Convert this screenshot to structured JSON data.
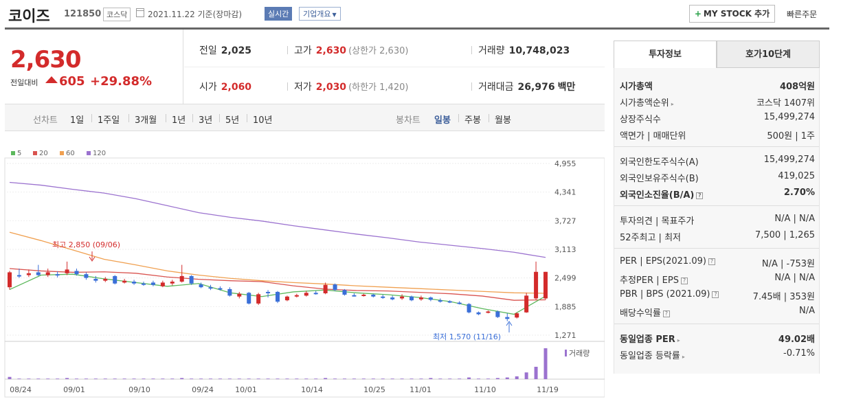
{
  "header": {
    "name": "코이즈",
    "code": "121850",
    "market": "코스닥",
    "date": "2021.11.22 기준(장마감)",
    "realtime": "실시간",
    "company": "기업개요",
    "mystock": "MY STOCK 추가",
    "quick_order": "빠른주문"
  },
  "price": {
    "current": "2,630",
    "change_label": "전일대비",
    "change": "605",
    "change_pct": "+29.88%"
  },
  "stats": {
    "prev_label": "전일",
    "prev": "2,025",
    "high_label": "고가",
    "high": "2,630",
    "upper_limit": "(상한가 2,630)",
    "volume_label": "거래량",
    "volume": "10,748,023",
    "open_label": "시가",
    "open": "2,060",
    "low_label": "저가",
    "low": "2,030",
    "lower_limit": "(하한가 1,420)",
    "amount_label": "거래대금",
    "amount": "26,976",
    "amount_unit": "백만"
  },
  "chart_tabs": {
    "line": "선차트",
    "periods": [
      "1일",
      "1주일",
      "3개월",
      "1년",
      "3년",
      "5년",
      "10년"
    ],
    "candle": "봉차트",
    "candle_periods": [
      "일봉",
      "주봉",
      "월봉"
    ]
  },
  "legend": [
    "5",
    "20",
    "60",
    "120"
  ],
  "colors": {
    "ma5": "#5cb85c",
    "ma20": "#d9534f",
    "ma60": "#f0a050",
    "ma120": "#9b72cf",
    "up": "#d32b2b",
    "down": "#3a6fd8",
    "volume": "#9b72cf"
  },
  "chart_data": {
    "type": "candlestick",
    "ylim": [
      1271,
      4955
    ],
    "y_ticks": [
      "4,955",
      "4,341",
      "3,727",
      "3,113",
      "2,499",
      "1,885",
      "1,271"
    ],
    "x_ticks": [
      "08/24",
      "09/01",
      "09/10",
      "09/24",
      "10/01",
      "10/14",
      "10/25",
      "11/01",
      "11/10",
      "11/19"
    ],
    "high_annotation": "최고 2,850 (09/06)",
    "low_annotation": "최저 1,570 (11/16)",
    "volume_label": "거래량",
    "ma120": [
      4550,
      4490,
      4400,
      4320,
      4200,
      4050,
      3900,
      3800,
      3720,
      3620,
      3530,
      3440,
      3360,
      3270,
      3200,
      3130,
      3050,
      2940
    ],
    "ma60": [
      3480,
      3300,
      3100,
      2900,
      2780,
      2650,
      2560,
      2490,
      2440,
      2400,
      2370,
      2330,
      2300,
      2270,
      2240,
      2210,
      2180,
      2170
    ],
    "ma20": [
      2700,
      2650,
      2620,
      2630,
      2600,
      2520,
      2470,
      2440,
      2420,
      2330,
      2260,
      2230,
      2220,
      2190,
      2160,
      2110,
      2020,
      2030
    ],
    "ma5": [
      2250,
      2560,
      2580,
      2480,
      2400,
      2320,
      2380,
      2180,
      2100,
      2200,
      2240,
      2180,
      2140,
      2080,
      1990,
      1840,
      1720,
      2110
    ],
    "candles": [
      {
        "o": 2300,
        "c": 2620,
        "h": 2650,
        "l": 2250
      },
      {
        "o": 2560,
        "c": 2540,
        "h": 2700,
        "l": 2500
      },
      {
        "o": 2560,
        "c": 2600,
        "h": 2680,
        "l": 2520
      },
      {
        "o": 2620,
        "c": 2560,
        "h": 2780,
        "l": 2540
      },
      {
        "o": 2560,
        "c": 2620,
        "h": 2700,
        "l": 2520
      },
      {
        "o": 2580,
        "c": 2560,
        "h": 2640,
        "l": 2510
      },
      {
        "o": 2600,
        "c": 2680,
        "h": 2850,
        "l": 2560
      },
      {
        "o": 2650,
        "c": 2580,
        "h": 2700,
        "l": 2550
      },
      {
        "o": 2580,
        "c": 2500,
        "h": 2620,
        "l": 2460
      },
      {
        "o": 2480,
        "c": 2440,
        "h": 2540,
        "l": 2400
      },
      {
        "o": 2440,
        "c": 2480,
        "h": 2520,
        "l": 2410
      },
      {
        "o": 2540,
        "c": 2380,
        "h": 2560,
        "l": 2360
      },
      {
        "o": 2400,
        "c": 2440,
        "h": 2480,
        "l": 2380
      },
      {
        "o": 2420,
        "c": 2380,
        "h": 2460,
        "l": 2350
      },
      {
        "o": 2380,
        "c": 2360,
        "h": 2420,
        "l": 2330
      },
      {
        "o": 2400,
        "c": 2350,
        "h": 2440,
        "l": 2320
      },
      {
        "o": 2320,
        "c": 2400,
        "h": 2440,
        "l": 2300
      },
      {
        "o": 2380,
        "c": 2420,
        "h": 2460,
        "l": 2340
      },
      {
        "o": 2420,
        "c": 2540,
        "h": 2780,
        "l": 2400
      },
      {
        "o": 2540,
        "c": 2380,
        "h": 2560,
        "l": 2350
      },
      {
        "o": 2360,
        "c": 2300,
        "h": 2400,
        "l": 2280
      },
      {
        "o": 2300,
        "c": 2280,
        "h": 2350,
        "l": 2240
      },
      {
        "o": 2280,
        "c": 2260,
        "h": 2320,
        "l": 2230
      },
      {
        "o": 2260,
        "c": 2120,
        "h": 2300,
        "l": 2100
      },
      {
        "o": 2100,
        "c": 2160,
        "h": 2200,
        "l": 2060
      },
      {
        "o": 2180,
        "c": 1950,
        "h": 2200,
        "l": 1930
      },
      {
        "o": 1950,
        "c": 2150,
        "h": 2180,
        "l": 1920
      },
      {
        "o": 2200,
        "c": 2180,
        "h": 2240,
        "l": 2080
      },
      {
        "o": 2200,
        "c": 1990,
        "h": 2220,
        "l": 1960
      },
      {
        "o": 2020,
        "c": 2100,
        "h": 2120,
        "l": 2000
      },
      {
        "o": 2100,
        "c": 2130,
        "h": 2160,
        "l": 2080
      },
      {
        "o": 2120,
        "c": 2180,
        "h": 2220,
        "l": 2100
      },
      {
        "o": 2180,
        "c": 2160,
        "h": 2220,
        "l": 2140
      },
      {
        "o": 2170,
        "c": 2350,
        "h": 2400,
        "l": 2150
      },
      {
        "o": 2360,
        "c": 2240,
        "h": 2380,
        "l": 2220
      },
      {
        "o": 2240,
        "c": 2140,
        "h": 2260,
        "l": 2120
      },
      {
        "o": 2130,
        "c": 2120,
        "h": 2170,
        "l": 2100
      },
      {
        "o": 2120,
        "c": 2140,
        "h": 2160,
        "l": 2100
      },
      {
        "o": 2140,
        "c": 2100,
        "h": 2160,
        "l": 2080
      },
      {
        "o": 2100,
        "c": 2080,
        "h": 2140,
        "l": 2050
      },
      {
        "o": 2080,
        "c": 2040,
        "h": 2120,
        "l": 2020
      },
      {
        "o": 2060,
        "c": 2100,
        "h": 2150,
        "l": 2030
      },
      {
        "o": 2100,
        "c": 2020,
        "h": 2120,
        "l": 2000
      },
      {
        "o": 2040,
        "c": 2080,
        "h": 2120,
        "l": 2010
      },
      {
        "o": 2080,
        "c": 2030,
        "h": 2100,
        "l": 2000
      },
      {
        "o": 2020,
        "c": 1990,
        "h": 2060,
        "l": 1970
      },
      {
        "o": 2000,
        "c": 1980,
        "h": 2020,
        "l": 1960
      },
      {
        "o": 1970,
        "c": 1950,
        "h": 2000,
        "l": 1930
      },
      {
        "o": 1940,
        "c": 1760,
        "h": 1960,
        "l": 1740
      },
      {
        "o": 1760,
        "c": 1720,
        "h": 1780,
        "l": 1700
      },
      {
        "o": 1760,
        "c": 1780,
        "h": 1800,
        "l": 1740
      },
      {
        "o": 1780,
        "c": 1660,
        "h": 1800,
        "l": 1640
      },
      {
        "o": 1660,
        "c": 1620,
        "h": 1740,
        "l": 1570
      },
      {
        "o": 1650,
        "c": 1740,
        "h": 1760,
        "l": 1630
      },
      {
        "o": 1760,
        "c": 2120,
        "h": 2180,
        "l": 1750
      },
      {
        "o": 2060,
        "c": 2630,
        "h": 2850,
        "l": 2030
      },
      {
        "o": 2060,
        "c": 2630,
        "h": 2630,
        "l": 2030
      }
    ],
    "volumes": [
      4,
      1,
      1,
      1,
      1,
      1,
      2,
      1,
      1,
      1,
      1,
      1,
      1,
      1,
      1,
      1,
      1,
      1,
      2,
      1,
      1,
      1,
      1,
      1,
      1,
      1,
      1,
      1,
      1,
      1,
      1,
      1,
      1,
      2,
      1,
      1,
      1,
      1,
      1,
      1,
      1,
      1,
      1,
      1,
      2,
      1,
      1,
      1,
      3,
      1,
      1,
      2,
      3,
      5,
      12,
      22,
      55
    ]
  },
  "right": {
    "tab_active": "투자정보",
    "tab_inactive": "호가10단계",
    "group1": [
      {
        "k": "시가총액",
        "v": "408억원",
        "bold": true
      },
      {
        "k": "시가총액순위",
        "v": "코스닥 1407위",
        "arrow": true
      },
      {
        "k": "상장주식수",
        "v": "15,499,274"
      },
      {
        "k": "액면가 | 매매단위",
        "v": "500원 | 1주"
      }
    ],
    "group2": [
      {
        "k": "외국인한도주식수(A)",
        "v": "15,499,274"
      },
      {
        "k": "외국인보유주식수(B)",
        "v": "419,025"
      },
      {
        "k": "외국인소진율(B/A)",
        "v": "2.70%",
        "bold": true,
        "info": true
      }
    ],
    "group3": [
      {
        "k": "투자의견 | 목표주가",
        "v": "N/A | N/A"
      },
      {
        "k": "52주최고 | 최저",
        "v": "7,500 | 1,265"
      }
    ],
    "group4": [
      {
        "k": "PER | EPS(2021.09)",
        "v": "N/A | -753원",
        "info": true
      },
      {
        "k": "추정PER | EPS",
        "v": "N/A | N/A",
        "info": true
      },
      {
        "k": "PBR | BPS (2021.09)",
        "v": "7.45배 | 353원",
        "info": true
      },
      {
        "k": "배당수익률",
        "v": "N/A",
        "info": true
      }
    ],
    "group5": [
      {
        "k": "동일업종 PER",
        "v": "49.02배",
        "bold": true,
        "arrow": true
      },
      {
        "k": "동일업종 등락률",
        "v": "-0.71%",
        "arrow": true,
        "blue": true
      }
    ]
  }
}
